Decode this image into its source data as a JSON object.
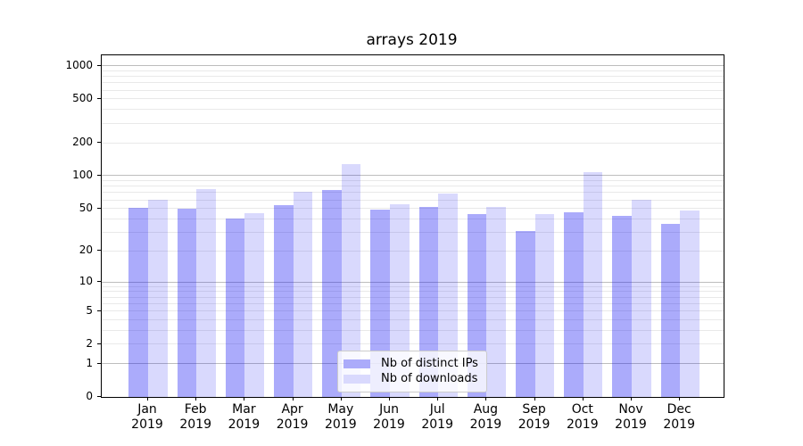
{
  "title": "arrays 2019",
  "legend": {
    "items": [
      {
        "label": "Nb of distinct IPs",
        "swatch_color": "#ababfa",
        "bar_color": "rgba(13,13,242,0.345)"
      },
      {
        "label": "Nb of downloads",
        "swatch_color": "#d9d9fd",
        "bar_color": "rgba(13,13,242,0.155)"
      }
    ]
  },
  "chart_data": {
    "type": "bar",
    "title": "arrays 2019",
    "categories": [
      "Jan 2019",
      "Feb 2019",
      "Mar 2019",
      "Apr 2019",
      "May 2019",
      "Jun 2019",
      "Jul 2019",
      "Aug 2019",
      "Sep 2019",
      "Oct 2019",
      "Nov 2019",
      "Dec 2019"
    ],
    "series": [
      {
        "name": "Nb of distinct IPs",
        "color": "rgba(13,13,242,0.345)",
        "values": [
          51,
          50,
          40,
          54,
          74,
          49,
          52,
          44,
          31,
          46,
          43,
          36
        ]
      },
      {
        "name": "Nb of downloads",
        "color": "rgba(13,13,242,0.155)",
        "values": [
          60,
          76,
          45,
          71,
          127,
          55,
          69,
          52,
          44,
          108,
          60,
          48
        ]
      }
    ],
    "xlabel": "",
    "ylabel": "",
    "yscale": "symlog",
    "y_ticks": [
      0,
      1,
      2,
      5,
      10,
      20,
      50,
      100,
      200,
      500,
      1000
    ],
    "ylim": [
      0,
      1250
    ],
    "grid": true,
    "legend_position": "lower center",
    "grid_major_color": "#bdbdbd",
    "grid_minor_color": "#e9e9e9"
  }
}
